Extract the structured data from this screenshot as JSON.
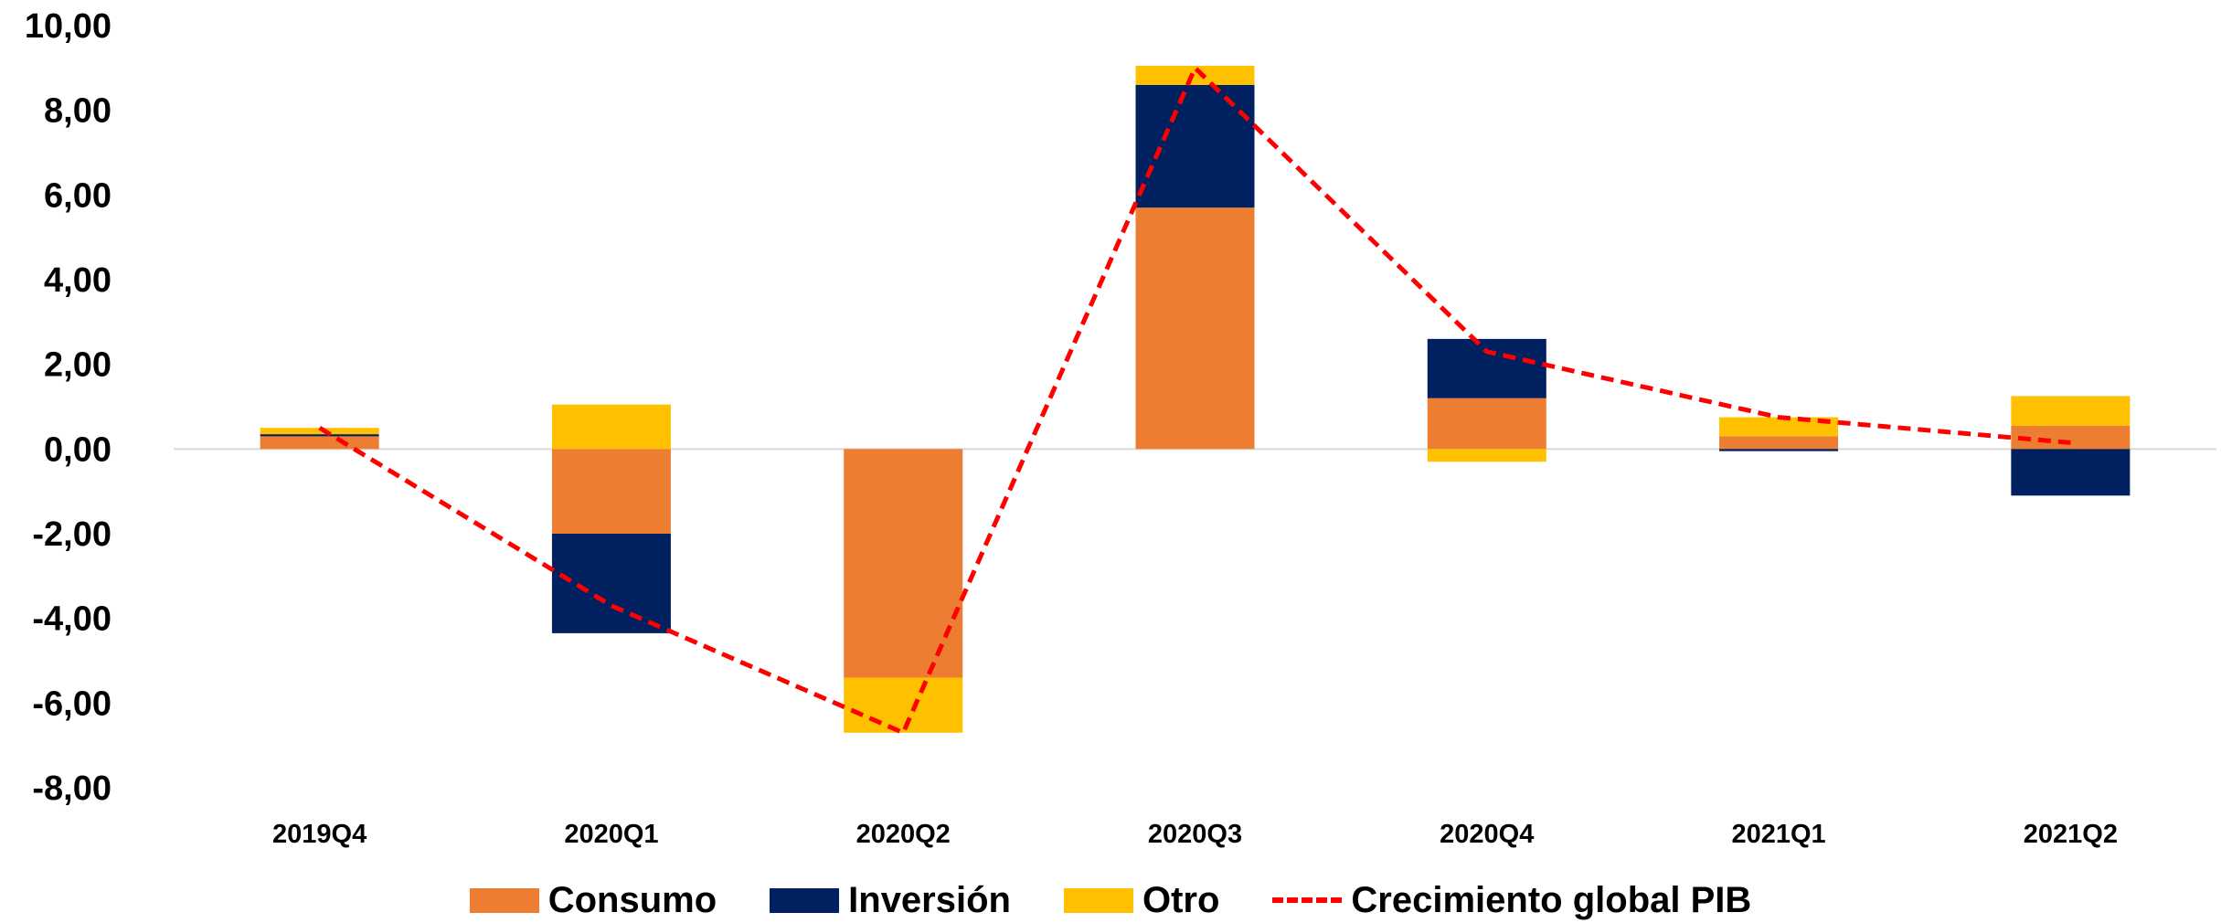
{
  "chart_data": {
    "type": "bar",
    "stacked": true,
    "categories": [
      "2019Q4",
      "2020Q1",
      "2020Q2",
      "2020Q3",
      "2020Q4",
      "2021Q1",
      "2021Q2"
    ],
    "series": [
      {
        "name": "Consumo",
        "kind": "bar",
        "color": "#ED7D31",
        "values": [
          0.3,
          -2.0,
          -5.4,
          5.7,
          1.2,
          0.3,
          0.55
        ]
      },
      {
        "name": "Inversión",
        "kind": "bar",
        "color": "#002060",
        "values": [
          0.05,
          -2.35,
          0.0,
          2.9,
          1.4,
          -0.05,
          -1.1
        ]
      },
      {
        "name": "Otro",
        "kind": "bar",
        "color": "#FFC000",
        "values": [
          0.15,
          1.05,
          -1.3,
          0.45,
          -0.3,
          0.45,
          0.7
        ]
      },
      {
        "name": "Crecimiento global PIB",
        "kind": "line",
        "style": "dashed",
        "color": "#FF0000",
        "values": [
          0.5,
          -3.7,
          -6.7,
          9.0,
          2.3,
          0.75,
          0.15
        ]
      }
    ],
    "y_ticks": [
      "10,00",
      "8,00",
      "6,00",
      "4,00",
      "2,00",
      "0,00",
      "-2,00",
      "-4,00",
      "-6,00",
      "-8,00"
    ],
    "ylim": [
      -8,
      10
    ],
    "xlabel": "",
    "ylabel": "",
    "title": "",
    "grid": false,
    "legend_position": "bottom"
  }
}
